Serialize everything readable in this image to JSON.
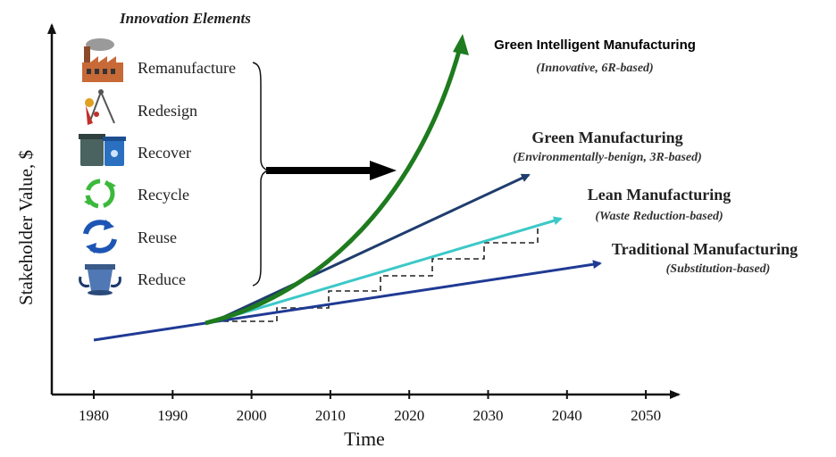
{
  "innovation_title": "Innovation Elements",
  "elements": [
    {
      "label": "Remanufacture",
      "icon": "factory-icon"
    },
    {
      "label": "Redesign",
      "icon": "drafting-tools-icon"
    },
    {
      "label": "Recover",
      "icon": "recycle-bins-icon"
    },
    {
      "label": "Recycle",
      "icon": "recycle-arrows-icon"
    },
    {
      "label": "Reuse",
      "icon": "reuse-arrows-icon"
    },
    {
      "label": "Reduce",
      "icon": "compactor-icon"
    }
  ],
  "chart_data": {
    "type": "line",
    "xlabel": "Time",
    "ylabel": "Stakeholder Value, $",
    "x_ticks": [
      "1980",
      "1990",
      "2000",
      "2010",
      "2020",
      "2030",
      "2040",
      "2050"
    ],
    "series": [
      {
        "name": "Green Intelligent Manufacturing",
        "subtitle": "(Innovative, 6R-based)",
        "color": "#1e7b1e",
        "shape": "exponential curve"
      },
      {
        "name": "Green Manufacturing",
        "subtitle": "(Environmentally-benign, 3R-based)",
        "color": "#1f3d6e",
        "shape": "linear"
      },
      {
        "name": "Lean Manufacturing",
        "subtitle": "(Waste Reduction-based)",
        "color": "#3cc8c8",
        "shape": "linear with dashed step function"
      },
      {
        "name": "Traditional Manufacturing",
        "subtitle": "(Substitution-based)",
        "color": "#1f3a94",
        "shape": "linear"
      }
    ]
  }
}
